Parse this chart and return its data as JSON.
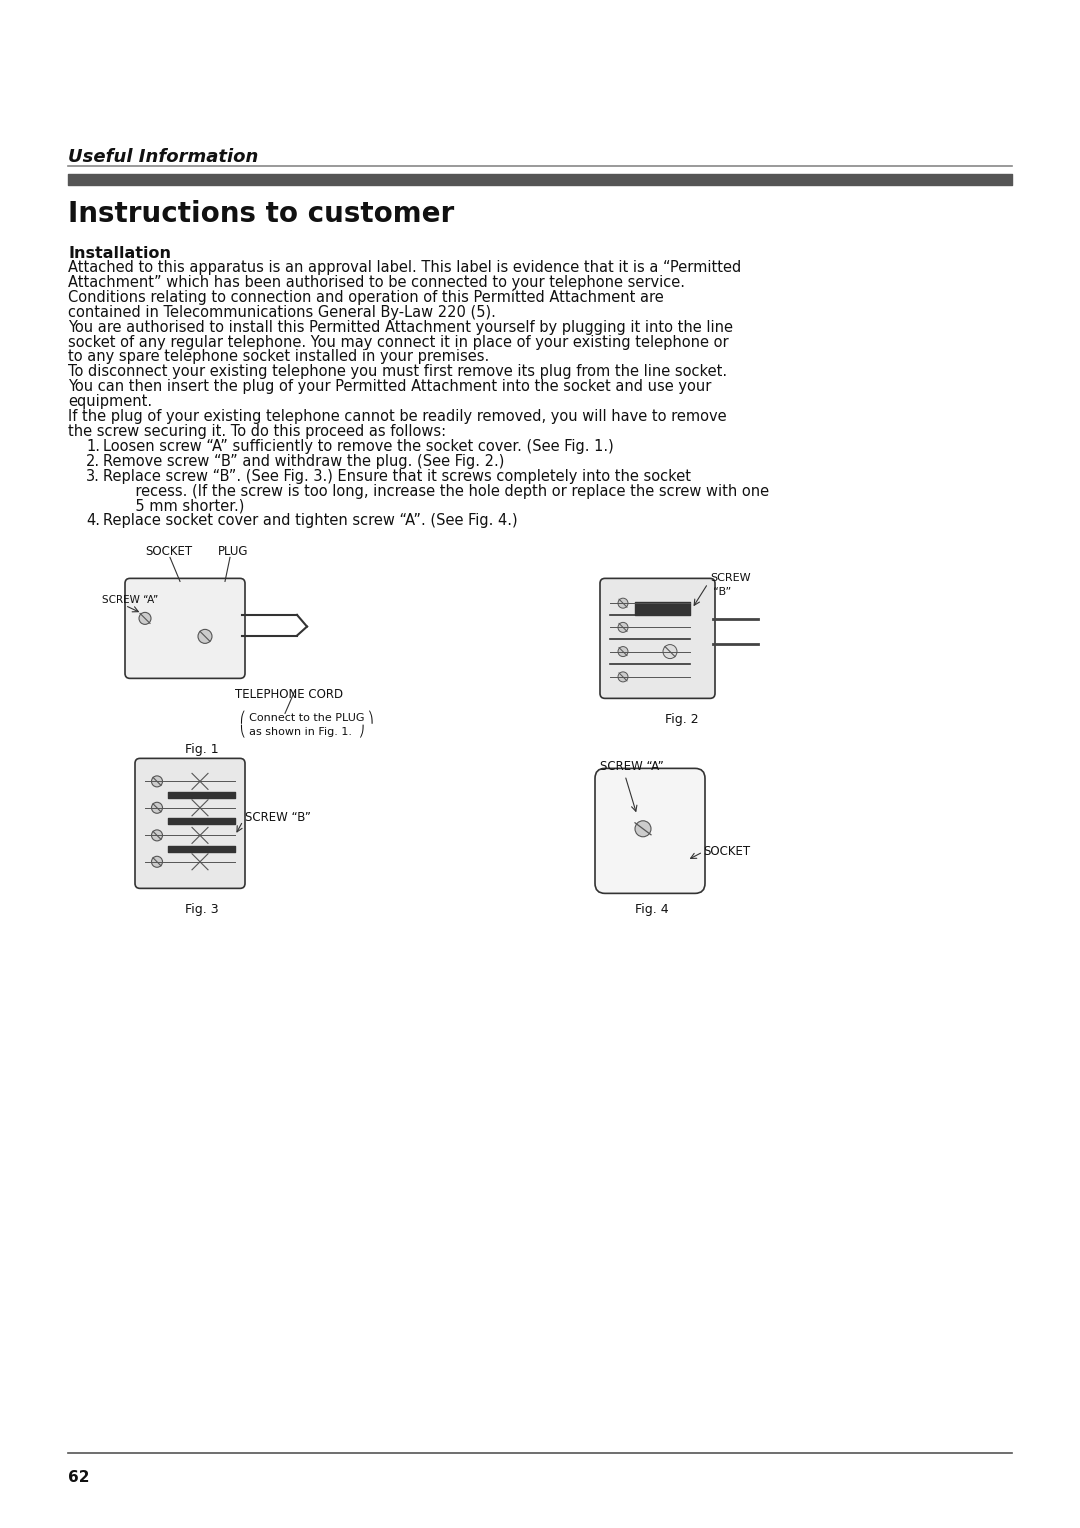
{
  "page_bg": "#ffffff",
  "section_header": "Useful Information",
  "title": "Instructions to customer",
  "subsection": "Installation",
  "paragraphs": [
    "Attached to this apparatus is an approval label. This label is evidence that it is a “Permitted Attachment” which has been authorised to be connected to your telephone service. Conditions relating to connection and operation of this Permitted Attachment are contained in Telecommunications General By-Law 220 (5).",
    "You are authorised to install this Permitted Attachment yourself by plugging it into the line socket of any regular telephone. You may connect it in place of your existing telephone or to any spare telephone socket installed in your premises.",
    "To disconnect your existing telephone you must first remove its plug from the line socket. You can then insert the plug of your Permitted Attachment into the socket and use your equipment.",
    "If the plug of your existing telephone cannot be readily removed, you will have to remove the screw securing it. To do this proceed as follows:"
  ],
  "list_items": [
    "Loosen screw “A” sufficiently to remove the socket cover. (See Fig. 1.)",
    "Remove screw “B” and withdraw the plug. (See Fig. 2.)",
    "Replace screw “B”. (See Fig. 3.) Ensure that it screws completely into the socket\n       recess. (If the screw is too long, increase the hole depth or replace the screw with one\n       5 mm shorter.)",
    "Replace socket cover and tighten screw “A”. (See Fig. 4.)"
  ],
  "page_number": "62",
  "line1_color": "#888888",
  "line2_color": "#555555",
  "text_color": "#111111"
}
